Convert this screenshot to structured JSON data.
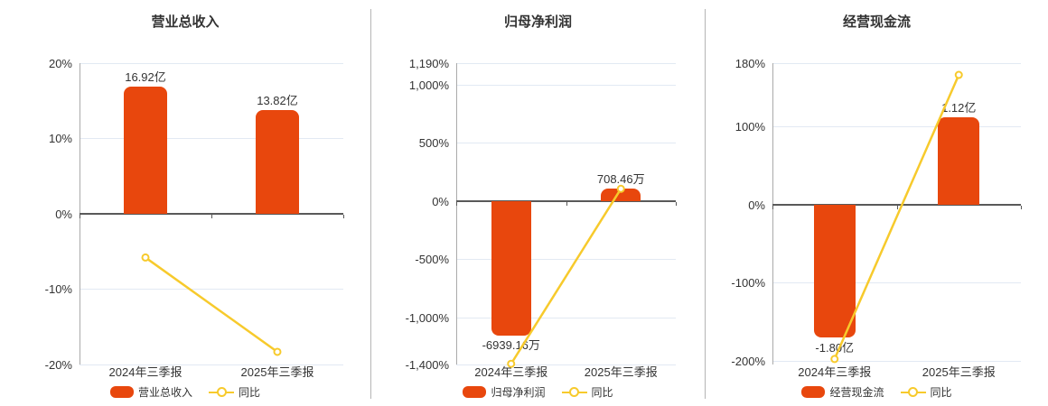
{
  "style": {
    "background": "#ffffff",
    "bar_color": "#e8470d",
    "line_color": "#f7ca2c",
    "marker_fill": "#ffffff",
    "grid_color": "#e2e9f3",
    "zero_axis_color": "#595959",
    "axis_line_color": "#aaaaaa",
    "text_color": "#333333",
    "divider_color": "#b5b5b5"
  },
  "chart_data": [
    {
      "type": "bar+line",
      "title": "营业总收入",
      "categories": [
        "2024年三季报",
        "2025年三季报"
      ],
      "legend": [
        "营业总收入",
        "同比"
      ],
      "legend_position": "bottom",
      "grid": true,
      "bar_series": {
        "name": "营业总收入",
        "labels": [
          "16.92亿",
          "13.82亿"
        ],
        "label_position": [
          "above",
          "above"
        ],
        "plot_pct": [
          16.92,
          13.82
        ]
      },
      "line_series": {
        "name": "同比",
        "values_pct": [
          -5.8,
          -18.32
        ]
      },
      "y_axis": {
        "min": -20,
        "max": 20,
        "ticks": [
          {
            "label": "20%",
            "value": 20
          },
          {
            "label": "10%",
            "value": 10
          },
          {
            "label": "0%",
            "value": 0
          },
          {
            "label": "-10%",
            "value": -10
          },
          {
            "label": "-20%",
            "value": -20
          }
        ]
      }
    },
    {
      "type": "bar+line",
      "title": "归母净利润",
      "categories": [
        "2024年三季报",
        "2025年三季报"
      ],
      "legend": [
        "归母净利润",
        "同比"
      ],
      "legend_position": "bottom",
      "grid": true,
      "bar_series": {
        "name": "归母净利润",
        "labels": [
          "-6939.16万",
          "708.46万"
        ],
        "label_position": [
          "below",
          "above"
        ],
        "plot_pct": [
          -1150,
          116
        ]
      },
      "line_series": {
        "name": "同比",
        "values_pct": [
          -1394,
          110
        ]
      },
      "y_axis": {
        "min": -1400,
        "max": 1190,
        "ticks": [
          {
            "label": "1,190%",
            "value": 1190
          },
          {
            "label": "1,000%",
            "value": 1000
          },
          {
            "label": "500%",
            "value": 500
          },
          {
            "label": "0%",
            "value": 0
          },
          {
            "label": "-500%",
            "value": -500
          },
          {
            "label": "-1,000%",
            "value": -1000
          },
          {
            "label": "-1,400%",
            "value": -1400
          }
        ]
      }
    },
    {
      "type": "bar+line",
      "title": "经营现金流",
      "categories": [
        "2024年三季报",
        "2025年三季报"
      ],
      "legend": [
        "经营现金流",
        "同比"
      ],
      "legend_position": "bottom",
      "grid": true,
      "bar_series": {
        "name": "经营现金流",
        "labels": [
          "-1.80亿",
          "1.12亿"
        ],
        "label_position": [
          "below",
          "above"
        ],
        "plot_pct": [
          -170,
          112
        ]
      },
      "line_series": {
        "name": "同比",
        "values_pct": [
          -197,
          166
        ]
      },
      "y_axis": {
        "min": -204,
        "max": 181,
        "ticks": [
          {
            "label": "180%",
            "value": 180
          },
          {
            "label": "100%",
            "value": 100
          },
          {
            "label": "0%",
            "value": 0
          },
          {
            "label": "-100%",
            "value": -100
          },
          {
            "label": "-200%",
            "value": -200
          }
        ]
      }
    }
  ]
}
